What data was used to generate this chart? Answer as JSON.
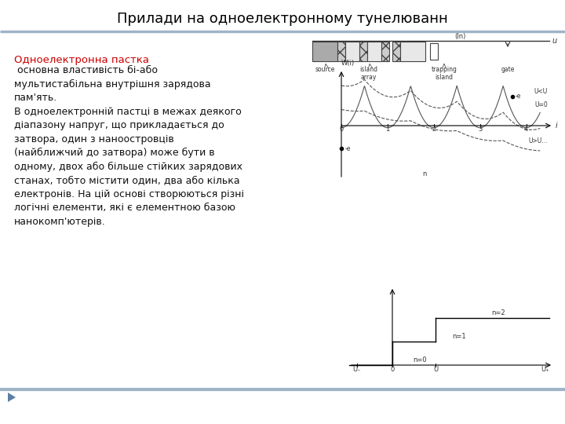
{
  "title": "Прилади на одноелектронному тунелюванн",
  "title_fontsize": 13,
  "title_color": "#000000",
  "background_color": "#ffffff",
  "header_line_color": "#a0b4c8",
  "footer_line_color": "#a0b4c8",
  "red_title": "Одноелектронна пастка",
  "red_title_color": "#cc0000",
  "body_text": " основна властивість бі-або\nмультистабільна внутрішня зарядова\nпам'ять.\nВ одноелектронній пастці в межах деякого\nдіапазону напруг, що прикладається до\nзатвора, один з наноостровців\n(найближчий до затвора) може бути в\nодному, двох або більше стійких зарядових\nстанах, тобто містити один, два або кілька\nелектронів. На цій основі створюються різні\nлогічні елементи, які є елементною базою\nнанокомп'ютерів.",
  "body_fontsize": 9.0,
  "footer_triangle_color": "#5b7fa6"
}
